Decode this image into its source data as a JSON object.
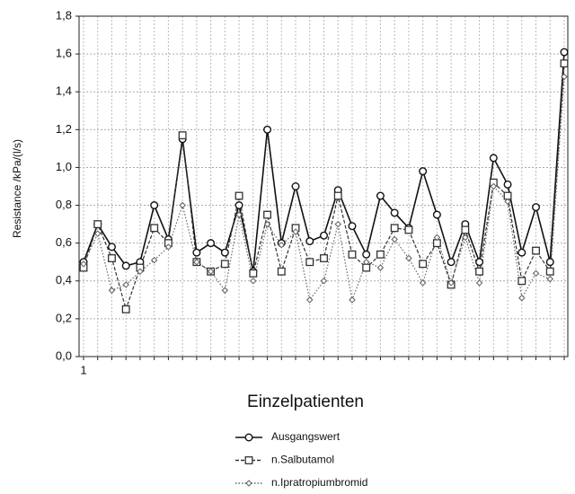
{
  "chart_data": {
    "type": "line",
    "y_label": "Resistance /kPa/(l/s)",
    "x_label": "Einzelpatienten",
    "categories": [
      "1",
      null,
      null,
      null,
      null,
      null,
      null,
      null,
      null,
      null,
      null,
      null,
      null,
      null,
      null,
      null,
      null,
      null,
      null,
      null,
      null,
      null,
      null,
      null,
      null,
      null,
      null,
      null,
      null,
      null,
      null,
      null,
      null,
      null,
      null
    ],
    "series": [
      {
        "name": "Ausgangswert",
        "color": "#111111",
        "marker": "circle",
        "line_style": "solid",
        "values": [
          0.5,
          0.7,
          0.58,
          0.48,
          0.5,
          0.8,
          0.62,
          1.15,
          0.55,
          0.6,
          0.55,
          0.8,
          0.45,
          1.2,
          0.6,
          0.9,
          0.61,
          0.64,
          0.88,
          0.69,
          0.54,
          0.85,
          0.76,
          0.68,
          0.98,
          0.75,
          0.5,
          0.7,
          0.5,
          1.05,
          0.91,
          0.55,
          0.79,
          0.5,
          1.61
        ]
      },
      {
        "name": "n.Salbutamol",
        "color": "#333333",
        "marker": "square",
        "line_style": "dashed",
        "values": [
          0.47,
          0.7,
          0.52,
          0.25,
          0.47,
          0.68,
          0.6,
          1.17,
          0.5,
          0.45,
          0.49,
          0.85,
          0.44,
          0.75,
          0.45,
          0.68,
          0.5,
          0.52,
          0.85,
          0.54,
          0.47,
          0.54,
          0.68,
          0.67,
          0.49,
          0.6,
          0.38,
          0.67,
          0.45,
          0.92,
          0.85,
          0.4,
          0.56,
          0.45,
          1.55
        ]
      },
      {
        "name": "n.Ipratropiumbromid",
        "color": "#666666",
        "marker": "diamond",
        "line_style": "dotted",
        "values": [
          0.49,
          0.65,
          0.35,
          0.38,
          0.45,
          0.51,
          0.58,
          0.8,
          0.5,
          0.45,
          0.35,
          0.75,
          0.4,
          0.7,
          0.59,
          0.66,
          0.3,
          0.4,
          0.7,
          0.3,
          0.5,
          0.47,
          0.62,
          0.52,
          0.39,
          0.63,
          0.39,
          0.63,
          0.39,
          0.9,
          0.82,
          0.31,
          0.44,
          0.41,
          1.48
        ]
      }
    ],
    "ylim": [
      0,
      1.8
    ],
    "yticks": [
      {
        "value": 0,
        "label": "0,0"
      },
      {
        "value": 0.2,
        "label": "0,2"
      },
      {
        "value": 0.4,
        "label": "0,4"
      },
      {
        "value": 0.6,
        "label": "0,6"
      },
      {
        "value": 0.8,
        "label": "0,8"
      },
      {
        "value": 1.0,
        "label": "1,0"
      },
      {
        "value": 1.2,
        "label": "1,2"
      },
      {
        "value": 1.4,
        "label": "1,4"
      },
      {
        "value": 1.6,
        "label": "1,6"
      },
      {
        "value": 1.8,
        "label": "1,8"
      }
    ],
    "grid": true,
    "legend_position": "bottom"
  }
}
